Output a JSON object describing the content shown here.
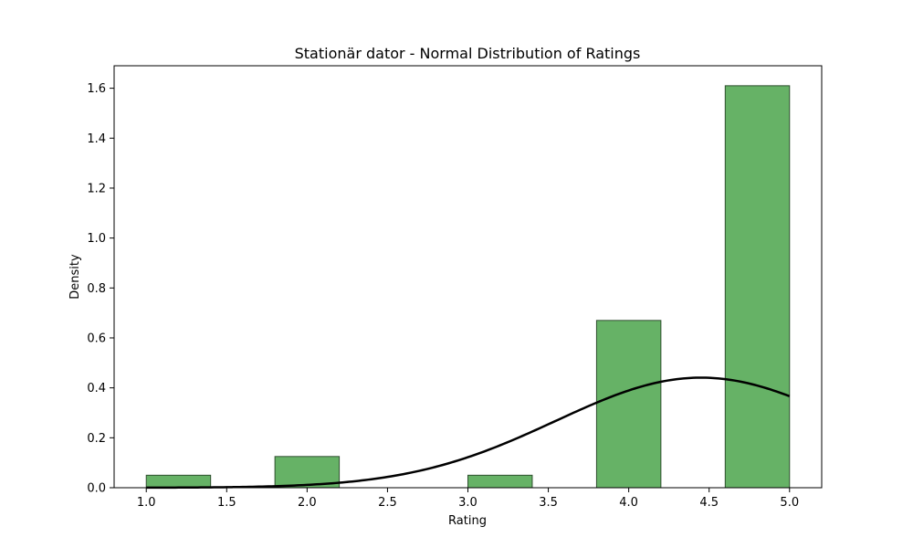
{
  "chart_data": {
    "type": "bar",
    "title": "Stationär dator - Normal Distribution of Ratings",
    "xlabel": "Rating",
    "ylabel": "Density",
    "xlim": [
      0.8,
      5.2
    ],
    "ylim": [
      0,
      1.69
    ],
    "x_ticks": [
      1.0,
      1.5,
      2.0,
      2.5,
      3.0,
      3.5,
      4.0,
      4.5,
      5.0
    ],
    "x_tick_labels": [
      "1.0",
      "1.5",
      "2.0",
      "2.5",
      "3.0",
      "3.5",
      "4.0",
      "4.5",
      "5.0"
    ],
    "y_ticks": [
      0.0,
      0.2,
      0.4,
      0.6,
      0.8,
      1.0,
      1.2,
      1.4,
      1.6
    ],
    "y_tick_labels": [
      "0.0",
      "0.2",
      "0.4",
      "0.6",
      "0.8",
      "1.0",
      "1.2",
      "1.4",
      "1.6"
    ],
    "grid": false,
    "bar_color": "#66b266",
    "bar_edge_color": "#2f4f2f",
    "curve_color": "#000000",
    "bins": [
      {
        "start": 1.0,
        "end": 1.4,
        "value": 0.05
      },
      {
        "start": 1.4,
        "end": 1.8,
        "value": 0.0
      },
      {
        "start": 1.8,
        "end": 2.2,
        "value": 0.125
      },
      {
        "start": 2.2,
        "end": 2.6,
        "value": 0.0
      },
      {
        "start": 2.6,
        "end": 3.0,
        "value": 0.0
      },
      {
        "start": 3.0,
        "end": 3.4,
        "value": 0.05
      },
      {
        "start": 3.4,
        "end": 3.8,
        "value": 0.0
      },
      {
        "start": 3.8,
        "end": 4.2,
        "value": 0.67
      },
      {
        "start": 4.2,
        "end": 4.6,
        "value": 0.0
      },
      {
        "start": 4.6,
        "end": 5.0,
        "value": 1.61
      }
    ],
    "normal_curve": {
      "mean": 4.45,
      "std": 0.905,
      "x_range": [
        1.0,
        5.0
      ]
    }
  }
}
